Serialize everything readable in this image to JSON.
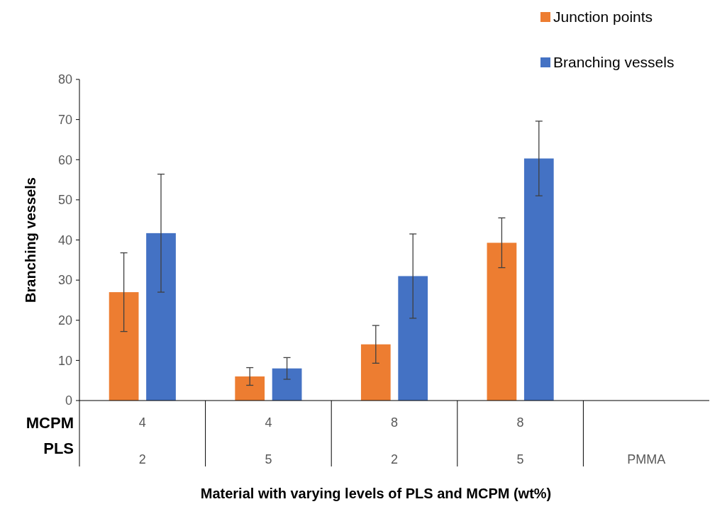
{
  "chart_data": {
    "type": "bar",
    "xlabel": "Material with varying levels of PLS and MCPM (wt%)",
    "ylabel": "Branching vessels",
    "categories": [
      "2",
      "5",
      "2",
      "5",
      "PMMA"
    ],
    "annotations": [
      "MCPM",
      "PLS",
      "4",
      "4",
      "8",
      "8"
    ],
    "series": [
      {
        "name": "Junction points",
        "color": "#ed7d31",
        "values": [
          27,
          6,
          14,
          39.3,
          0
        ],
        "errors": [
          9.8,
          2.2,
          4.7,
          6.2,
          null
        ]
      },
      {
        "name": "Branching vessels",
        "color": "#4472c4",
        "values": [
          41.7,
          8,
          31,
          60.3,
          0
        ],
        "errors": [
          14.7,
          2.7,
          10.5,
          9.3,
          null
        ]
      }
    ],
    "ylim": [
      0,
      80
    ],
    "yticks": [
      0,
      10,
      20,
      30,
      40,
      50,
      60,
      70,
      80
    ],
    "legend": "top right"
  }
}
